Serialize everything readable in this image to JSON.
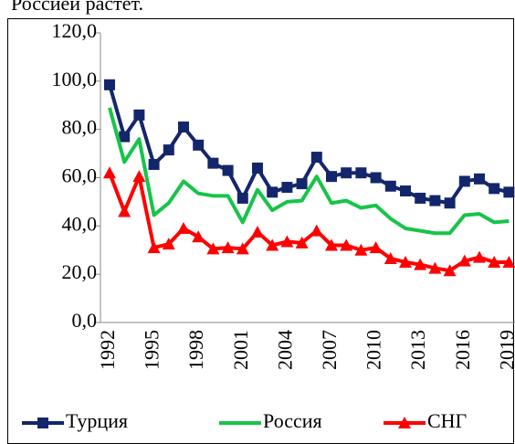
{
  "caption": "Россией растет.",
  "chart_data": {
    "type": "line",
    "categories": [
      "1992",
      null,
      null,
      "1995",
      null,
      null,
      "1998",
      null,
      null,
      "2001",
      null,
      null,
      "2004",
      null,
      null,
      "2007",
      null,
      null,
      "2010",
      null,
      null,
      "2013",
      null,
      null,
      "2016",
      null,
      null,
      "2019"
    ],
    "series": [
      {
        "name": "Турция",
        "color": "#14266b",
        "marker": "square",
        "values": [
          98.5,
          77,
          86,
          65.5,
          71.5,
          81,
          73.5,
          66,
          63,
          51.5,
          64,
          54,
          56,
          57.5,
          68.5,
          60.5,
          62,
          62,
          60,
          56.5,
          54.5,
          51.5,
          50.5,
          49.5,
          58.5,
          59.5,
          55.5,
          54
        ]
      },
      {
        "name": "Россия",
        "color": "#17c44a",
        "marker": "none",
        "values": [
          89,
          66.5,
          76,
          44.5,
          49.5,
          58.5,
          53.5,
          52.5,
          52.5,
          41.5,
          55,
          46.5,
          50,
          50.5,
          60.5,
          49.5,
          50.5,
          47.5,
          48.5,
          43,
          39,
          38,
          37,
          37,
          44.5,
          45,
          41.5,
          42
        ]
      },
      {
        "name": "СНГ",
        "color": "#ff0000",
        "marker": "triangle",
        "values": [
          62,
          46,
          60.5,
          31,
          32.5,
          39,
          35.5,
          30.5,
          31,
          30.5,
          37.5,
          32,
          33.5,
          33,
          38,
          32,
          32,
          30,
          31,
          26.5,
          25,
          24,
          22.5,
          21.5,
          25.5,
          27,
          25,
          25
        ]
      }
    ],
    "ylim": [
      0,
      120
    ],
    "yticks": [
      {
        "value": 0,
        "label": "0,0"
      },
      {
        "value": 20,
        "label": "20,0"
      },
      {
        "value": 40,
        "label": "40,0"
      },
      {
        "value": 60,
        "label": "60,0"
      },
      {
        "value": 80,
        "label": "80,0"
      },
      {
        "value": 100,
        "label": "100,0"
      },
      {
        "value": 120,
        "label": "120,0"
      }
    ],
    "grid": false,
    "legend": "bottom"
  }
}
